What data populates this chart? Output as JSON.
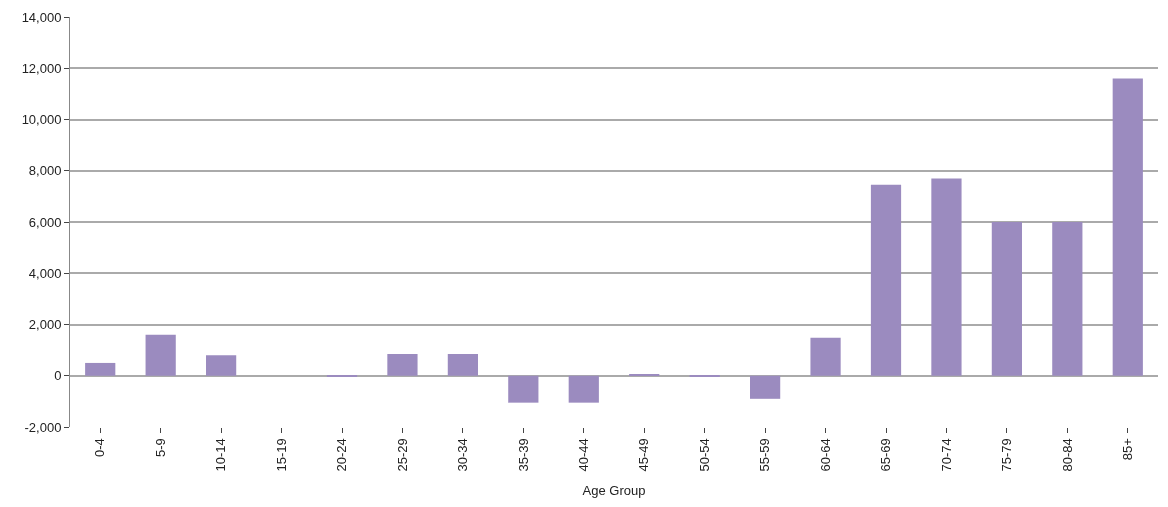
{
  "chart_data": {
    "type": "bar",
    "xlabel": "Age Group",
    "categories": [
      "0-4",
      "5-9",
      "10-14",
      "15-19",
      "20-24",
      "25-29",
      "30-34",
      "35-39",
      "40-44",
      "45-49",
      "50-54",
      "55-59",
      "60-64",
      "65-69",
      "70-74",
      "75-79",
      "80-84",
      "85+"
    ],
    "series": [
      {
        "color": "#9b8bbf",
        "values": [
          500,
          1600,
          800,
          0,
          -50,
          850,
          850,
          -1050,
          -1050,
          50,
          -30,
          -900,
          1480,
          7450,
          7700,
          6000,
          6000,
          11600
        ]
      }
    ],
    "ylim": [
      -2000,
      14000
    ],
    "yticks": [
      {
        "value": -2000,
        "label": "-2,000"
      },
      0,
      {
        "value": 2000,
        "label": "2,000"
      },
      {
        "value": 4000,
        "label": "4,000"
      },
      {
        "value": 6000,
        "label": "6,000"
      },
      {
        "value": 8000,
        "label": "8,000"
      },
      {
        "value": 10000,
        "label": "10,000"
      },
      {
        "value": 12000,
        "label": "12,000"
      },
      {
        "value": 14000,
        "label": "14,000"
      }
    ],
    "grid": "y",
    "legend": false
  }
}
